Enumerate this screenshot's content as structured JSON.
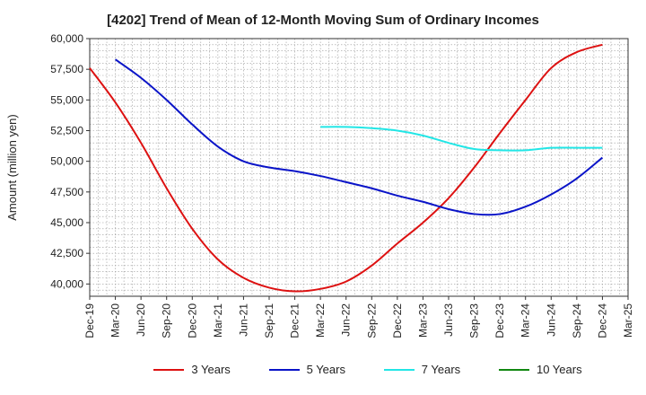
{
  "chart_data": {
    "type": "line",
    "title": "[4202]  Trend of Mean of 12-Month Moving Sum of Ordinary Incomes",
    "xlabel": "",
    "ylabel": "Amount (million yen)",
    "ylim": [
      39000,
      60000
    ],
    "yticks": [
      40000,
      42500,
      45000,
      47500,
      50000,
      52500,
      55000,
      57500,
      60000
    ],
    "ytick_labels": [
      "40,000",
      "42,500",
      "45,000",
      "47,500",
      "50,000",
      "52,500",
      "55,000",
      "57,500",
      "60,000"
    ],
    "categories": [
      "Dec-19",
      "Mar-20",
      "Jun-20",
      "Sep-20",
      "Dec-20",
      "Mar-21",
      "Jun-21",
      "Sep-21",
      "Dec-21",
      "Mar-22",
      "Jun-22",
      "Sep-22",
      "Dec-22",
      "Mar-23",
      "Jun-23",
      "Sep-23",
      "Dec-23",
      "Mar-24",
      "Jun-24",
      "Sep-24",
      "Dec-24",
      "Mar-25"
    ],
    "grid": true,
    "legend_position": "bottom",
    "series": [
      {
        "name": "3 Years",
        "color": "#dd1111",
        "values": [
          57600,
          54800,
          51500,
          47800,
          44500,
          42000,
          40500,
          39700,
          39400,
          39600,
          40200,
          41500,
          43300,
          45000,
          47000,
          49500,
          52300,
          55000,
          57600,
          58900,
          59500,
          null
        ]
      },
      {
        "name": "5 Years",
        "color": "#0a14c8",
        "values": [
          null,
          58300,
          56800,
          55000,
          53000,
          51200,
          50000,
          49500,
          49200,
          48800,
          48300,
          47800,
          47200,
          46700,
          46100,
          45700,
          45700,
          46300,
          47300,
          48600,
          50300,
          null
        ]
      },
      {
        "name": "7 Years",
        "color": "#22e6e6",
        "values": [
          null,
          null,
          null,
          null,
          null,
          null,
          null,
          null,
          null,
          52800,
          52800,
          52700,
          52500,
          52100,
          51500,
          51000,
          50900,
          50900,
          51100,
          51100,
          51100,
          null
        ]
      },
      {
        "name": "10 Years",
        "color": "#118811",
        "values": [
          null,
          null,
          null,
          null,
          null,
          null,
          null,
          null,
          null,
          null,
          null,
          null,
          null,
          null,
          null,
          null,
          null,
          null,
          null,
          null,
          null,
          null
        ]
      }
    ]
  }
}
